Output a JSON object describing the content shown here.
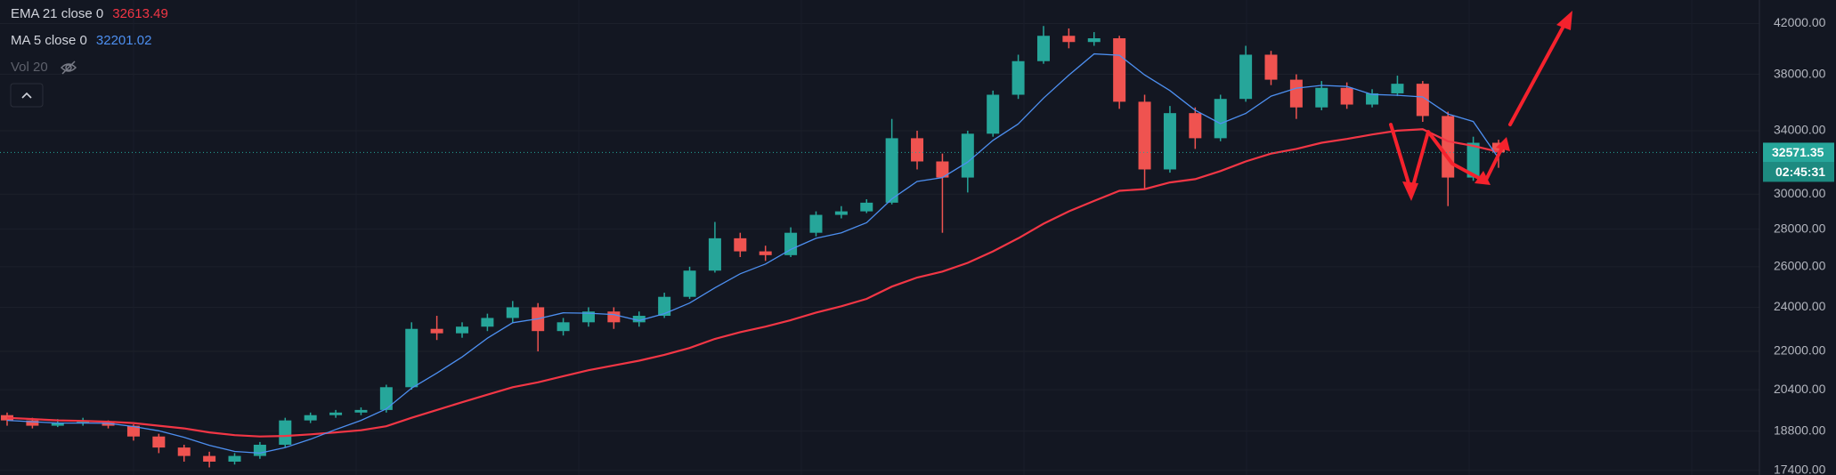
{
  "chart_data": {
    "type": "candlestick",
    "log_scale": true,
    "grid": true,
    "ylim": [
      17240,
      44000
    ],
    "yticks": [
      {
        "value": 17400,
        "label": "17400.00"
      },
      {
        "value": 18800,
        "label": "18800.00"
      },
      {
        "value": 20400,
        "label": "20400.00"
      },
      {
        "value": 22000,
        "label": "22000.00"
      },
      {
        "value": 24000,
        "label": "24000.00"
      },
      {
        "value": 26000,
        "label": "26000.00"
      },
      {
        "value": 28000,
        "label": "28000.00"
      },
      {
        "value": 30000,
        "label": "30000.00"
      },
      {
        "value": 34000,
        "label": "34000.00"
      },
      {
        "value": 38000,
        "label": "38000.00"
      },
      {
        "value": 42000,
        "label": "42000.00"
      }
    ],
    "candles": {
      "up_color": "#26a69a",
      "down_color": "#ef5350",
      "open": [
        19400,
        19200,
        19000,
        19100,
        19150,
        19000,
        18600,
        18200,
        17900,
        17700,
        17900,
        18300,
        19200,
        19400,
        19500,
        19600,
        20500,
        23000,
        22800,
        23100,
        23500,
        24000,
        22900,
        23300,
        23800,
        23300,
        23600,
        24500,
        25800,
        27500,
        26800,
        26600,
        27800,
        28800,
        29000,
        29500,
        33500,
        32000,
        31000,
        33800,
        36500,
        39000,
        41000,
        40500,
        40800,
        36000,
        31500,
        35200,
        33500,
        36200,
        39500,
        37600,
        35600,
        37000,
        35800,
        36600,
        37300,
        35000,
        31000,
        33200
      ],
      "high": [
        19500,
        19300,
        19250,
        19300,
        19200,
        19050,
        18700,
        18300,
        18050,
        18000,
        18400,
        19300,
        19500,
        19600,
        19700,
        20600,
        23300,
        23600,
        23300,
        23700,
        24300,
        24200,
        23500,
        24000,
        24000,
        23800,
        24700,
        26000,
        28400,
        27800,
        27100,
        28100,
        29000,
        29300,
        29700,
        34800,
        34000,
        32500,
        34000,
        36800,
        39500,
        41800,
        41600,
        41300,
        41000,
        36500,
        35700,
        35600,
        36500,
        40200,
        39800,
        38000,
        37500,
        37400,
        36900,
        37900,
        37500,
        35300,
        33600,
        33400
      ],
      "low": [
        19000,
        18900,
        18950,
        19000,
        18900,
        18450,
        18000,
        17700,
        17500,
        17600,
        17800,
        18200,
        19100,
        19300,
        19400,
        19500,
        20400,
        22500,
        22600,
        22900,
        23300,
        22000,
        22700,
        23100,
        23000,
        23100,
        23500,
        24400,
        25700,
        26500,
        26300,
        26500,
        27600,
        28600,
        28900,
        29400,
        31500,
        27800,
        30100,
        33600,
        36200,
        38800,
        40000,
        40200,
        35500,
        30300,
        31300,
        32800,
        33300,
        36000,
        37200,
        34800,
        35400,
        35500,
        35600,
        36400,
        34600,
        29300,
        30800,
        31600
      ],
      "close": [
        19200,
        19000,
        19100,
        19150,
        19000,
        18600,
        18200,
        17900,
        17700,
        17900,
        18300,
        19200,
        19400,
        19500,
        19600,
        20500,
        23000,
        22800,
        23100,
        23500,
        24000,
        22900,
        23300,
        23800,
        23300,
        23600,
        24500,
        25800,
        27500,
        26800,
        26600,
        27800,
        28800,
        29000,
        29500,
        33500,
        32000,
        31000,
        33800,
        36500,
        39000,
        41000,
        40500,
        40800,
        36000,
        31500,
        35200,
        33500,
        36200,
        39500,
        37600,
        35600,
        37000,
        35800,
        36600,
        37300,
        35000,
        31000,
        33200,
        32571.35
      ]
    },
    "lines": [
      {
        "name": "EMA 21 close 0",
        "color": "#f23645",
        "values": [
          19300,
          19250,
          19200,
          19180,
          19150,
          19100,
          19000,
          18900,
          18750,
          18650,
          18600,
          18620,
          18680,
          18750,
          18830,
          18980,
          19300,
          19600,
          19900,
          20200,
          20500,
          20700,
          20950,
          21200,
          21400,
          21600,
          21850,
          22150,
          22550,
          22850,
          23100,
          23400,
          23750,
          24050,
          24400,
          25000,
          25450,
          25750,
          26200,
          26800,
          27500,
          28300,
          29000,
          29600,
          30200,
          30300,
          30700,
          30900,
          31400,
          32000,
          32500,
          32800,
          33200,
          33450,
          33750,
          34000,
          34100,
          33300,
          33000,
          32613.49
        ]
      },
      {
        "name": "MA 5 close 0",
        "color": "#4d8ff0",
        "values": [
          19200,
          19150,
          19100,
          19100,
          19090,
          18970,
          18810,
          18570,
          18280,
          18060,
          18000,
          18200,
          18500,
          18860,
          19200,
          19640,
          20460,
          21080,
          21760,
          22580,
          23280,
          23460,
          23740,
          23720,
          23660,
          23380,
          23700,
          24200,
          24940,
          25640,
          26140,
          26900,
          27500,
          27800,
          28360,
          29720,
          30760,
          31000,
          31960,
          33360,
          34460,
          36260,
          37940,
          39560,
          39460,
          37960,
          36800,
          35400,
          34480,
          35180,
          36400,
          36980,
          37180,
          37100,
          36520,
          36460,
          36340,
          35140,
          34620,
          32201.02
        ]
      }
    ],
    "hidden_indicator": "Vol 20",
    "countdown": "02:45:31"
  }
}
